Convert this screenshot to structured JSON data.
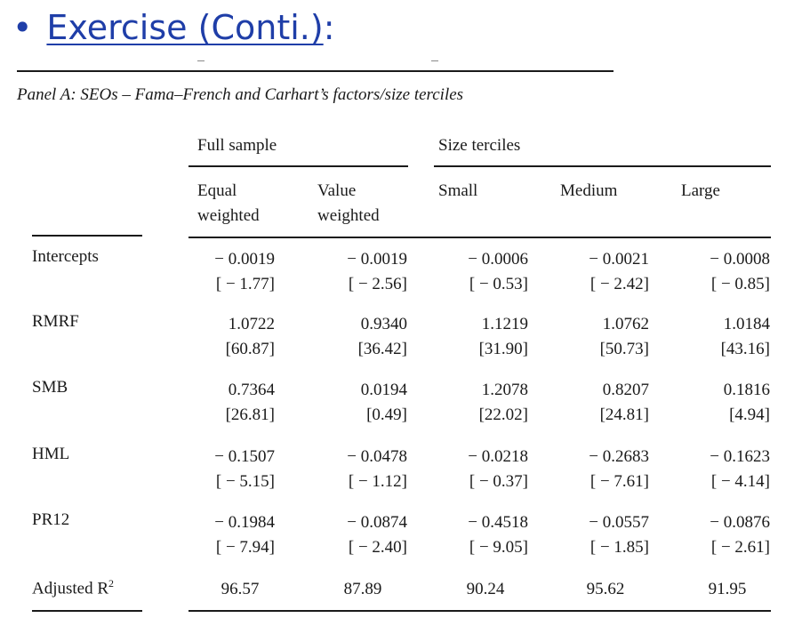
{
  "slide": {
    "bullet": "•",
    "title": "Exercise (Conti.)",
    "title_suffix": ":"
  },
  "table": {
    "caption": "Panel A: SEOs – Fama–French and Carhart’s factors/size terciles",
    "group_full": "Full sample",
    "group_size": "Size terciles",
    "columns": [
      [
        "Equal",
        "weighted"
      ],
      [
        "Value",
        "weighted"
      ],
      [
        "Small",
        ""
      ],
      [
        "Medium",
        ""
      ],
      [
        "Large",
        ""
      ]
    ],
    "rows": [
      {
        "label": "Intercepts",
        "values": [
          "− 0.0019",
          "− 0.0019",
          "− 0.0006",
          "− 0.0021",
          "− 0.0008"
        ],
        "tstats": [
          "[ − 1.77]",
          "[ − 2.56]",
          "[ − 0.53]",
          "[ − 2.42]",
          "[ − 0.85]"
        ]
      },
      {
        "label": "RMRF",
        "values": [
          "1.0722",
          "0.9340",
          "1.1219",
          "1.0762",
          "1.0184"
        ],
        "tstats": [
          "[60.87]",
          "[36.42]",
          "[31.90]",
          "[50.73]",
          "[43.16]"
        ]
      },
      {
        "label": "SMB",
        "values": [
          "0.7364",
          "0.0194",
          "1.2078",
          "0.8207",
          "0.1816"
        ],
        "tstats": [
          "[26.81]",
          "[0.49]",
          "[22.02]",
          "[24.81]",
          "[4.94]"
        ]
      },
      {
        "label": "HML",
        "values": [
          "− 0.1507",
          "− 0.0478",
          "− 0.0218",
          "− 0.2683",
          "− 0.1623"
        ],
        "tstats": [
          "[ − 5.15]",
          "[ − 1.12]",
          "[ − 0.37]",
          "[ − 7.61]",
          "[ − 4.14]"
        ]
      },
      {
        "label": "PR12",
        "values": [
          "− 0.1984",
          "− 0.0874",
          "− 0.4518",
          "− 0.0557",
          "− 0.0876"
        ],
        "tstats": [
          "[ − 7.94]",
          "[ − 2.40]",
          "[ − 9.05]",
          "[ − 1.85]",
          "[ − 2.61]"
        ]
      }
    ],
    "adjusted": {
      "label": "Adjusted R",
      "label_sup": "2",
      "values": [
        "96.57",
        "87.89",
        "90.24",
        "95.62",
        "91.95"
      ]
    }
  }
}
